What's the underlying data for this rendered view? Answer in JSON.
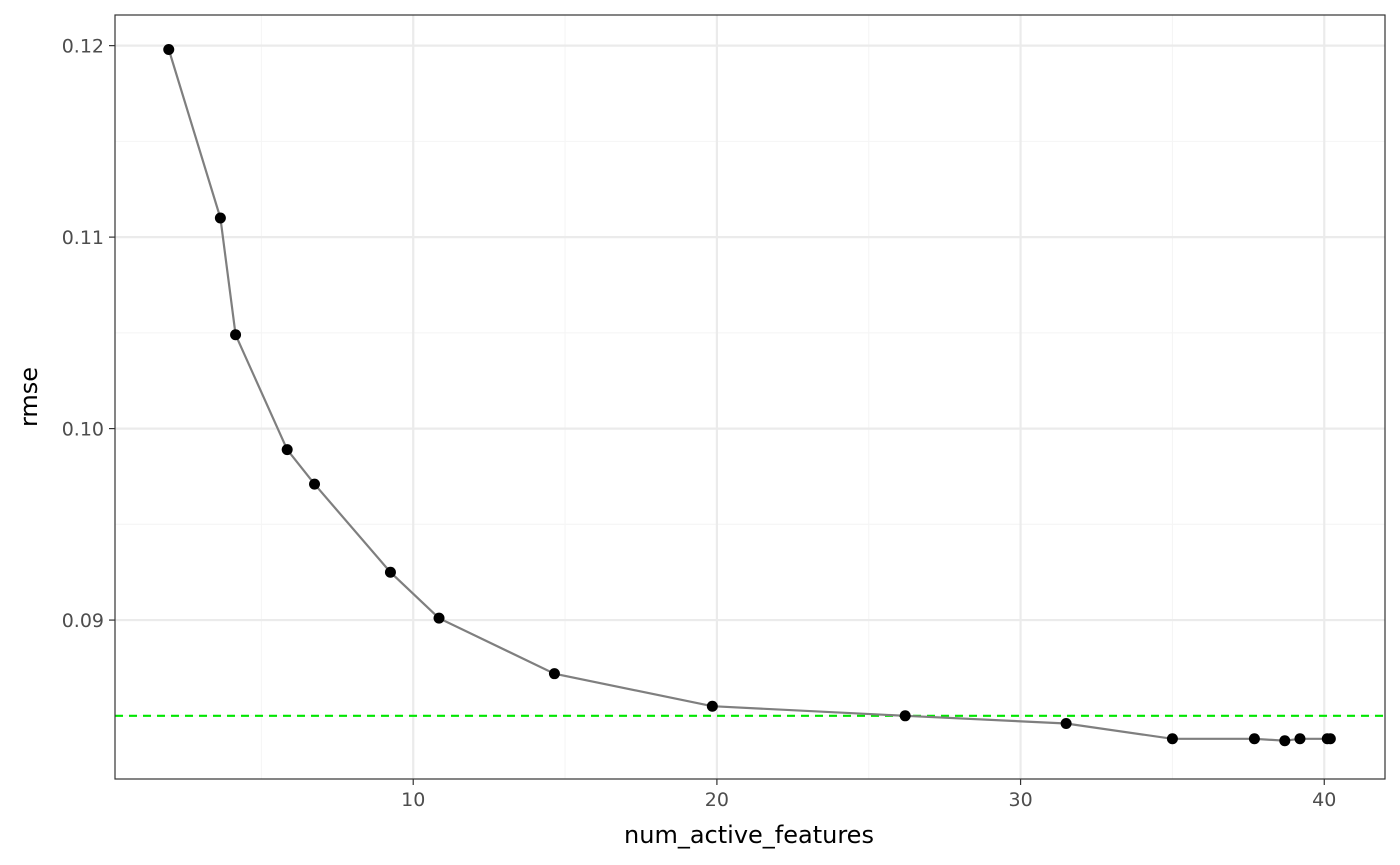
{
  "chart_data": {
    "type": "line",
    "title": "",
    "xlabel": "num_active_features",
    "ylabel": "rmse",
    "xlim": [
      0.18,
      42.0
    ],
    "ylim": [
      0.0817,
      0.1216
    ],
    "x_ticks": [
      10,
      20,
      30,
      40
    ],
    "x_tick_labels": [
      "10",
      "20",
      "30",
      "40"
    ],
    "x_minor_ticks": [
      5,
      15,
      25,
      35
    ],
    "y_ticks": [
      0.09,
      0.1,
      0.11,
      0.12
    ],
    "y_tick_labels": [
      "0.09",
      "0.10",
      "0.11",
      "0.12"
    ],
    "y_minor_ticks": [
      0.085,
      0.095,
      0.105,
      0.115
    ],
    "grid": true,
    "reference_line": {
      "orientation": "horizontal",
      "y": 0.085,
      "style": "dashed",
      "color": "#00e600"
    },
    "series": [
      {
        "x": [
          1.95,
          3.65,
          4.15,
          5.85,
          6.75,
          9.25,
          10.85,
          14.65,
          19.85,
          26.2,
          31.5,
          35.0,
          37.7,
          38.7,
          39.2,
          40.1,
          40.2
        ],
        "y": [
          0.1198,
          0.111,
          0.1049,
          0.0989,
          0.0971,
          0.0925,
          0.0901,
          0.0872,
          0.0855,
          0.085,
          0.0846,
          0.0838,
          0.0838,
          0.0837,
          0.0838,
          0.0838,
          0.0838
        ],
        "line_color": "#7f7f7f",
        "marker_color": "#000000"
      }
    ],
    "colors": {
      "panel_border": "#333333",
      "grid_major": "#ebebeb",
      "grid_minor": "#f5f5f5"
    }
  }
}
